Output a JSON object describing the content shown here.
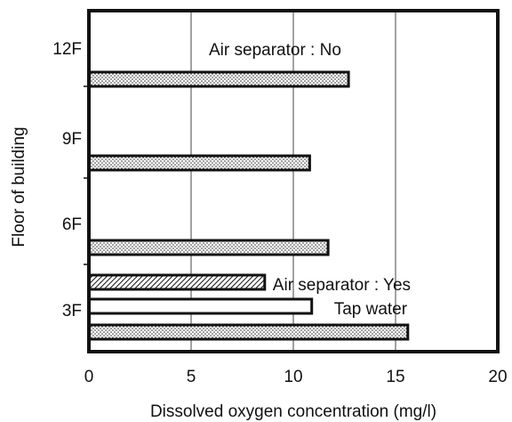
{
  "chart_data": {
    "type": "barh",
    "xlabel": "Dissolved oxygen concentration (mg/l)",
    "ylabel": "Floor of building",
    "categories": [
      "12F",
      "9F",
      "6F",
      "3F"
    ],
    "series": [
      {
        "name": "Air separator : No",
        "color": "#111111",
        "pattern": "dots",
        "values": [
          12.7,
          10.8,
          11.7,
          15.6
        ]
      },
      {
        "name": "Air separator : Yes",
        "color": "#111111",
        "pattern": "hatch",
        "values": [
          null,
          null,
          null,
          8.6
        ]
      },
      {
        "name": "Tap water",
        "color": "#111111",
        "pattern": "none",
        "values": [
          null,
          null,
          null,
          10.9
        ]
      }
    ],
    "xlim": [
      0,
      20
    ],
    "xticks": [
      0,
      5,
      10,
      15,
      20
    ],
    "grid": true
  }
}
